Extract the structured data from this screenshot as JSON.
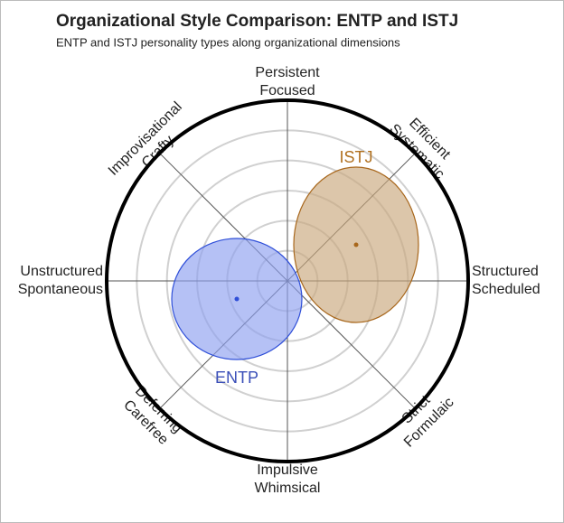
{
  "chart_data": {
    "type": "ellipse",
    "title": "Organizational Style Comparison: ENTP and ISTJ",
    "subtitle": "ENTP and ISTJ personality types along organizational dimensions",
    "axes": [
      [
        "Persistent",
        "Focused"
      ],
      [
        "Efficient",
        "Systematic"
      ],
      [
        "Structured",
        "Scheduled"
      ],
      [
        "Strict",
        "Formulaic"
      ],
      [
        "Impulsive",
        "Whimsical"
      ],
      [
        "Deferring",
        "Carefree"
      ],
      [
        "Unstructured",
        "Spontaneous"
      ],
      [
        "Improvisational",
        "Crafty"
      ]
    ],
    "xlim": [
      -60,
      60
    ],
    "ylim": [
      -60,
      60
    ],
    "rticks": [
      10,
      20,
      30,
      40,
      50
    ],
    "series": [
      {
        "name": "ISTJ",
        "color": "#c9a77c",
        "edge_color": "#a8671c",
        "label_color": "#b0701f",
        "x": 22.8,
        "y": 12,
        "rx": 20.7,
        "ry": 25.8
      },
      {
        "name": "ENTP",
        "color": "#8e9ff0",
        "edge_color": "#2f4fd8",
        "label_color": "#3a4fb8",
        "x": -16.8,
        "y": -6,
        "rx": 21.6,
        "ry": 20.1
      }
    ]
  }
}
